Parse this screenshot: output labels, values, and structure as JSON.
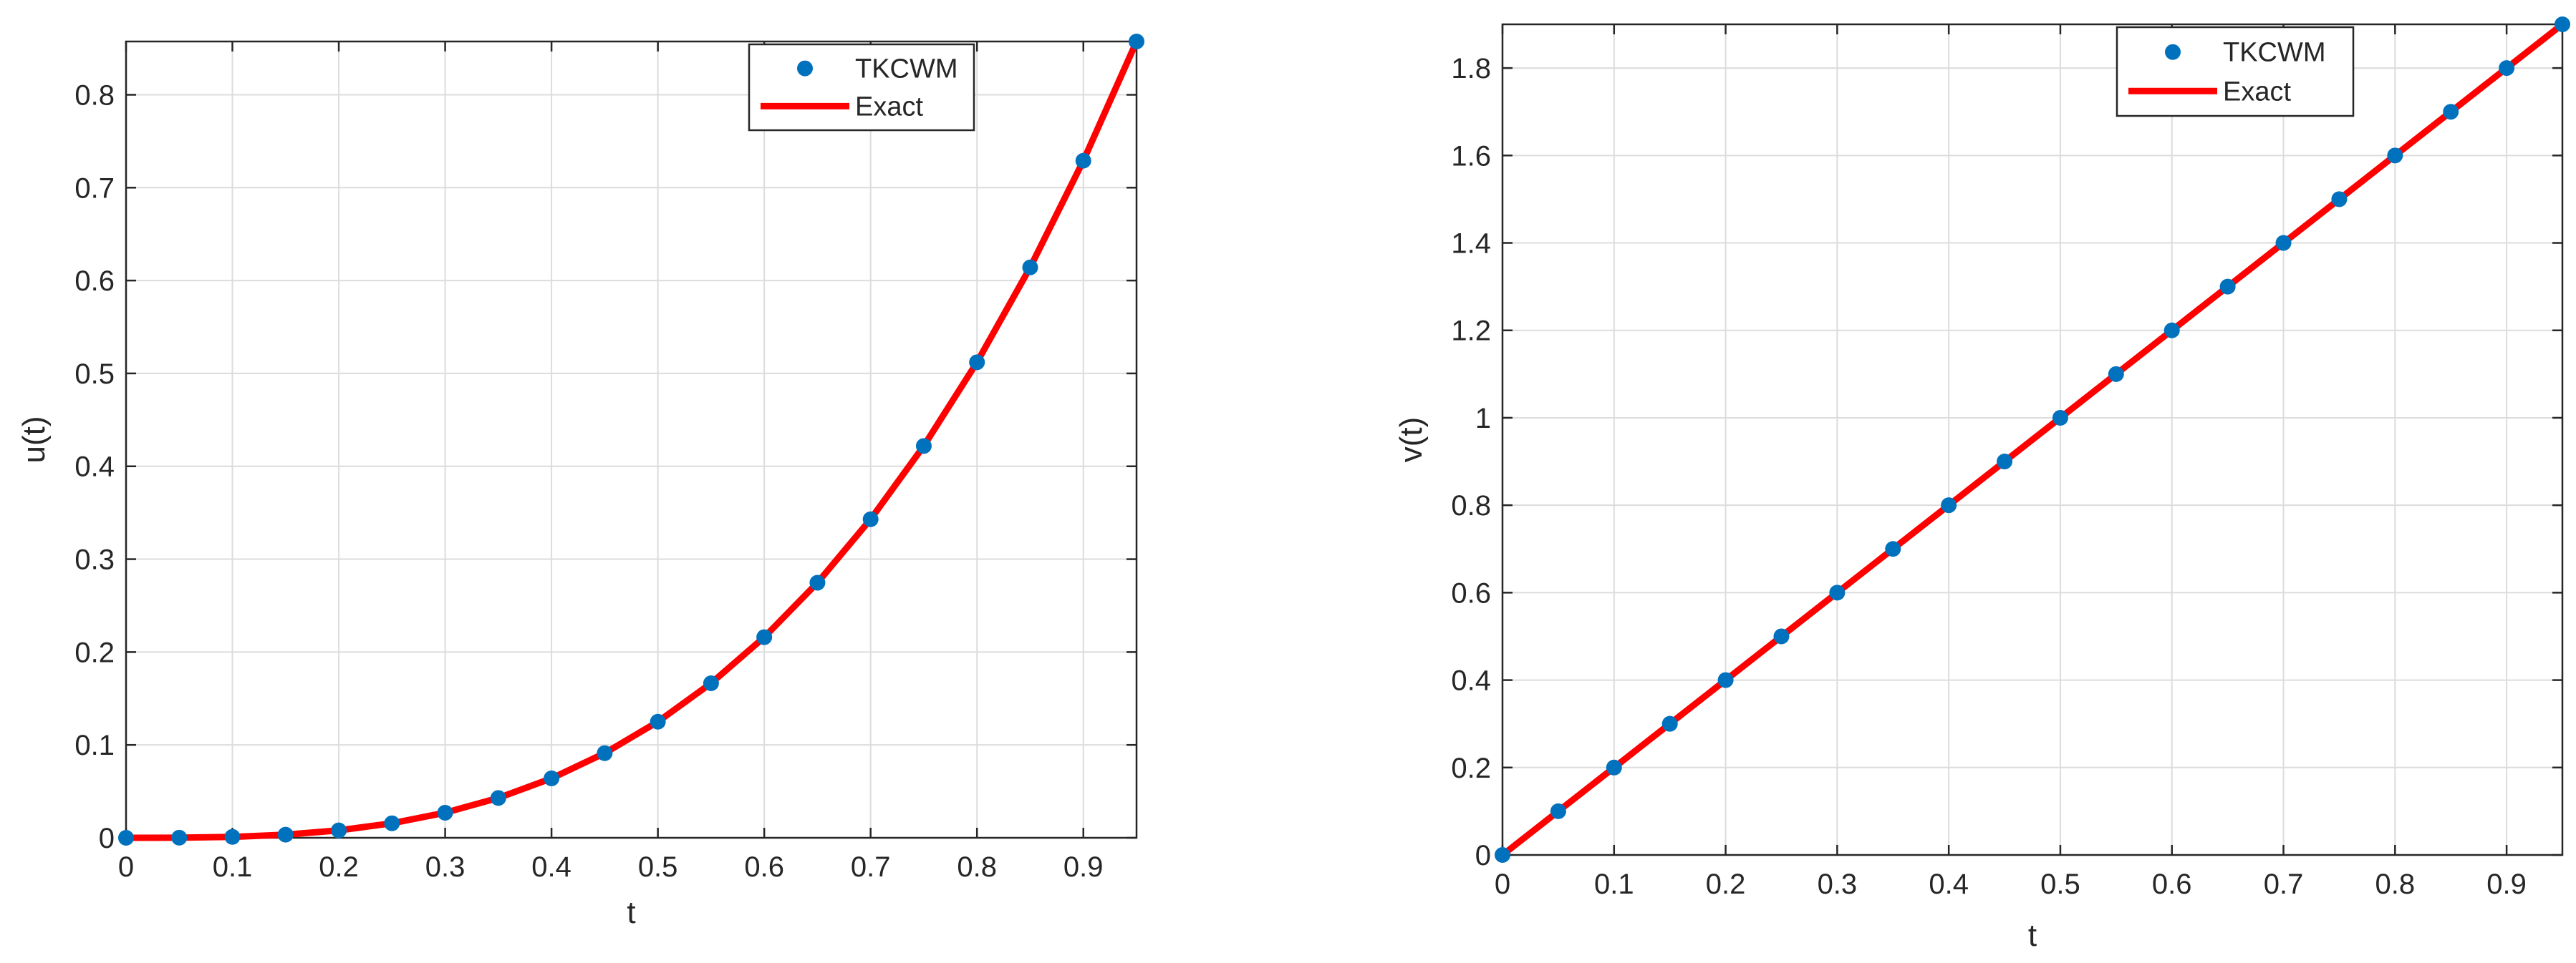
{
  "chart_data": [
    {
      "type": "line",
      "id": "left",
      "xlabel": "t",
      "ylabel": "u(t)",
      "xlim": [
        0,
        0.95
      ],
      "ylim": [
        0,
        0.857375
      ],
      "xticks": [
        0,
        0.1,
        0.2,
        0.3,
        0.4,
        0.5,
        0.6,
        0.7,
        0.8,
        0.9
      ],
      "xtick_labels": [
        "0",
        "0.1",
        "0.2",
        "0.3",
        "0.4",
        "0.5",
        "0.6",
        "0.7",
        "0.8",
        "0.9"
      ],
      "yticks": [
        0,
        0.1,
        0.2,
        0.3,
        0.4,
        0.5,
        0.6,
        0.7,
        0.8
      ],
      "ytick_labels": [
        "0",
        "0.1",
        "0.2",
        "0.3",
        "0.4",
        "0.5",
        "0.6",
        "0.7",
        "0.8"
      ],
      "grid": true,
      "legend_position": "top-right",
      "x": [
        0,
        0.05,
        0.1,
        0.15,
        0.2,
        0.25,
        0.3,
        0.35,
        0.4,
        0.45,
        0.5,
        0.55,
        0.6,
        0.65,
        0.7,
        0.75,
        0.8,
        0.85,
        0.9,
        0.95
      ],
      "series": [
        {
          "name": "TKCWM",
          "style": "markers",
          "color": "#0072BD",
          "values": [
            0,
            0.000125,
            0.001,
            0.003375,
            0.008,
            0.015625,
            0.027,
            0.042875,
            0.064,
            0.091125,
            0.125,
            0.166375,
            0.216,
            0.274625,
            0.343,
            0.421875,
            0.512,
            0.614125,
            0.729,
            0.857375
          ]
        },
        {
          "name": "Exact",
          "style": "line",
          "color": "#FF0000",
          "values": [
            0,
            0.000125,
            0.001,
            0.003375,
            0.008,
            0.015625,
            0.027,
            0.042875,
            0.064,
            0.091125,
            0.125,
            0.166375,
            0.216,
            0.274625,
            0.343,
            0.421875,
            0.512,
            0.614125,
            0.729,
            0.857375
          ]
        }
      ]
    },
    {
      "type": "line",
      "id": "right",
      "xlabel": "t",
      "ylabel": "v(t)",
      "xlim": [
        0,
        0.95
      ],
      "ylim": [
        0,
        1.9
      ],
      "xticks": [
        0,
        0.1,
        0.2,
        0.3,
        0.4,
        0.5,
        0.6,
        0.7,
        0.8,
        0.9
      ],
      "xtick_labels": [
        "0",
        "0.1",
        "0.2",
        "0.3",
        "0.4",
        "0.5",
        "0.6",
        "0.7",
        "0.8",
        "0.9"
      ],
      "yticks": [
        0,
        0.2,
        0.4,
        0.6,
        0.8,
        1,
        1.2,
        1.4,
        1.6,
        1.8
      ],
      "ytick_labels": [
        "0",
        "0.2",
        "0.4",
        "0.6",
        "0.8",
        "1",
        "1.2",
        "1.4",
        "1.6",
        "1.8"
      ],
      "grid": true,
      "legend_position": "top-right",
      "x": [
        0,
        0.05,
        0.1,
        0.15,
        0.2,
        0.25,
        0.3,
        0.35,
        0.4,
        0.45,
        0.5,
        0.55,
        0.6,
        0.65,
        0.7,
        0.75,
        0.8,
        0.85,
        0.9,
        0.95
      ],
      "series": [
        {
          "name": "TKCWM",
          "style": "markers",
          "color": "#0072BD",
          "values": [
            0,
            0.1,
            0.2,
            0.3,
            0.4,
            0.5,
            0.6,
            0.7,
            0.8,
            0.9,
            1.0,
            1.1,
            1.2,
            1.3,
            1.4,
            1.5,
            1.6,
            1.7,
            1.8,
            1.9
          ]
        },
        {
          "name": "Exact",
          "style": "line",
          "color": "#FF0000",
          "values": [
            0,
            0.1,
            0.2,
            0.3,
            0.4,
            0.5,
            0.6,
            0.7,
            0.8,
            0.9,
            1.0,
            1.1,
            1.2,
            1.3,
            1.4,
            1.5,
            1.6,
            1.7,
            1.8,
            1.9
          ]
        }
      ]
    }
  ]
}
